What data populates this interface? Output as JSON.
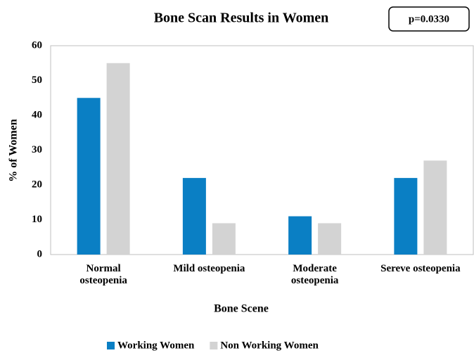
{
  "chart_data": {
    "type": "bar",
    "title": "Bone Scan Results in Women",
    "annotation": "p=0.0330",
    "x_label": "Bone Scene",
    "y_label": "% of Women",
    "categories": [
      "Normal osteopenia",
      "Mild osteopenia",
      "Moderate osteopenia",
      "Sereve osteopenia"
    ],
    "series": [
      {
        "name": "Working Women",
        "color": "#0a7fc4",
        "values": [
          45,
          22,
          11,
          22
        ]
      },
      {
        "name": "Non Working Women",
        "color": "#d3d3d3",
        "values": [
          55,
          9,
          9,
          27
        ]
      }
    ],
    "ylim": [
      0,
      60
    ],
    "yticks": [
      0,
      10,
      20,
      30,
      40,
      50,
      60
    ],
    "grid": false
  }
}
